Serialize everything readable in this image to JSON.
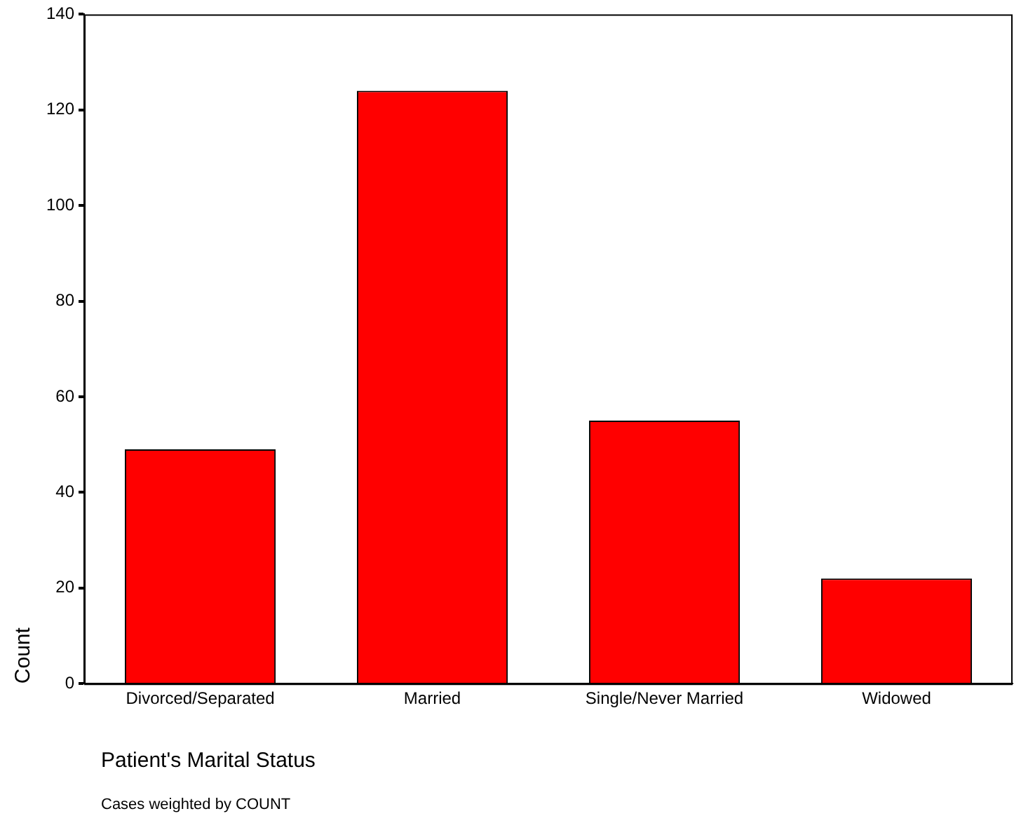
{
  "chart_data": {
    "type": "bar",
    "xlabel": "Patient's Marital Status",
    "ylabel": "Count",
    "categories": [
      "Divorced/Separated",
      "Married",
      "Single/Never Married",
      "Widowed"
    ],
    "values": [
      49,
      124,
      55,
      22
    ],
    "color": "#ff0000",
    "ylim": [
      0,
      140
    ],
    "yticks": [
      0,
      20,
      40,
      60,
      80,
      100,
      120,
      140
    ],
    "grid": false,
    "legend": false,
    "annotations": [
      "Cases weighted by COUNT"
    ]
  }
}
